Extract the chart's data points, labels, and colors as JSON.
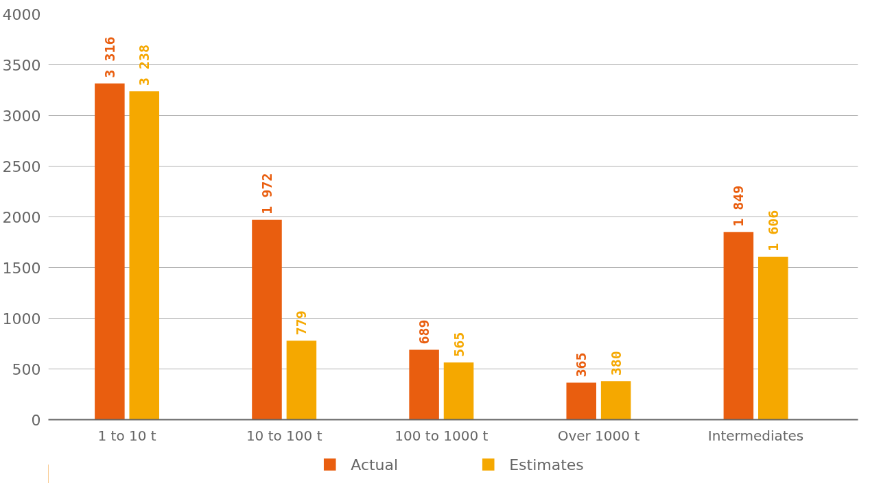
{
  "chart_data": {
    "type": "bar",
    "categories": [
      "1 to 10 t",
      "10 to 100 t",
      "100 to 1000 t",
      "Over 1000 t",
      "Intermediates"
    ],
    "series": [
      {
        "name": "Actual",
        "color": "#e95e0f",
        "values": [
          3316,
          1972,
          689,
          365,
          1849
        ],
        "value_labels": [
          "3 316",
          "1 972",
          "689",
          "365",
          "1 849"
        ]
      },
      {
        "name": "Estimates",
        "color": "#f5a800",
        "values": [
          3238,
          779,
          565,
          380,
          1606
        ],
        "value_labels": [
          "3 238",
          "779",
          "565",
          "380",
          "1 606"
        ]
      }
    ],
    "ylim": [
      0,
      4000
    ],
    "yticks": [
      0,
      500,
      1000,
      1500,
      2000,
      2500,
      3000,
      3500,
      4000
    ],
    "grid": "y",
    "legend": "bottom"
  }
}
